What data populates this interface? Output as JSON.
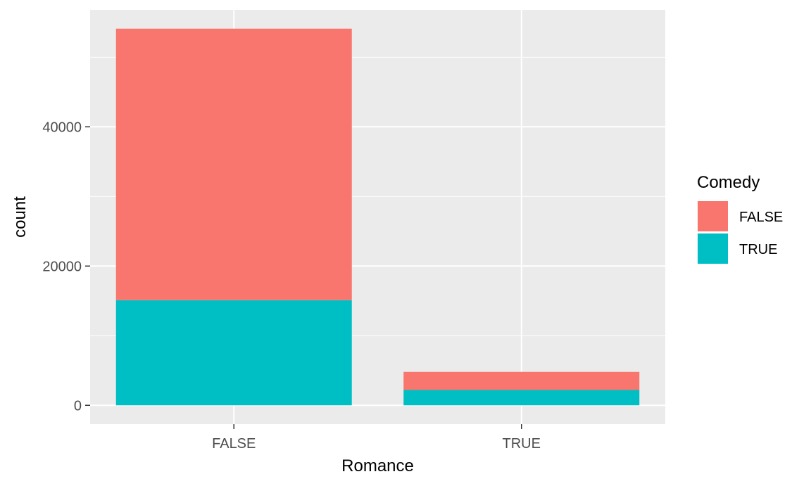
{
  "chart_data": {
    "type": "bar",
    "stacked": true,
    "xlabel": "Romance",
    "ylabel": "count",
    "categories": [
      "FALSE",
      "TRUE"
    ],
    "series": [
      {
        "name": "FALSE",
        "values": [
          39000,
          2600
        ]
      },
      {
        "name": "TRUE",
        "values": [
          15100,
          2200
        ]
      }
    ],
    "ylim": [
      -2700,
      56800
    ],
    "yticks": [
      0,
      20000,
      40000
    ],
    "ytick_labels": [
      "0",
      "20000",
      "40000"
    ],
    "y_minor_ticks": [
      10000,
      30000,
      50000
    ],
    "grid": true,
    "legend": {
      "title": "Comedy",
      "placement": "right",
      "entries": [
        "FALSE",
        "TRUE"
      ]
    },
    "colors": {
      "FALSE": "#F8766D",
      "TRUE": "#00BFC4",
      "panel_background": "#EBEBEB",
      "grid": "#FFFFFF"
    }
  }
}
